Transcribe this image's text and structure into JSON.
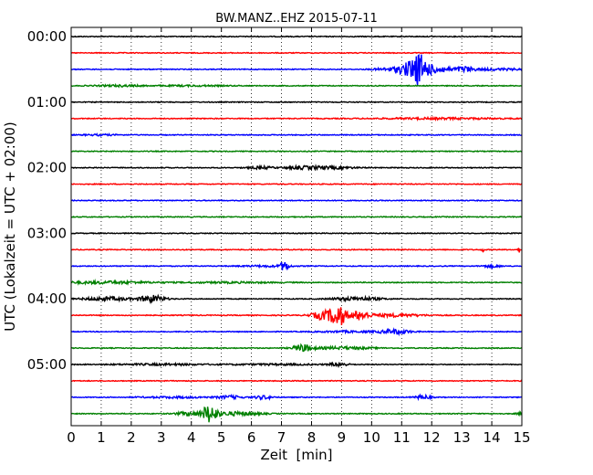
{
  "chart_data": {
    "type": "line",
    "title": "BW.MANZ..EHZ 2015-07-11",
    "xlabel": "Zeit  [min]",
    "ylabel": "UTC (Lokalzeit = UTC + 02:00)",
    "xlim": [
      0,
      15
    ],
    "x_ticks": [
      "0",
      "1",
      "2",
      "3",
      "4",
      "5",
      "6",
      "7",
      "8",
      "9",
      "10",
      "11",
      "12",
      "13",
      "14",
      "15"
    ],
    "hour_labels": [
      "00:00",
      "01:00",
      "02:00",
      "03:00",
      "04:00",
      "05:00"
    ],
    "grid": "vertical-dotted",
    "series_colors": [
      "#000000",
      "#ff0000",
      "#0000ff",
      "#008000"
    ],
    "traces": [
      {
        "start": "00:00",
        "color": "#000000",
        "events": []
      },
      {
        "start": "00:15",
        "color": "#ff0000",
        "events": []
      },
      {
        "start": "00:30",
        "color": "#0000ff",
        "events": [
          {
            "t": 10.6,
            "amp": 0.12,
            "width": 0.5
          },
          {
            "t": 11.3,
            "amp": 0.55,
            "width": 0.4
          },
          {
            "t": 11.6,
            "amp": 0.9,
            "width": 0.25
          },
          {
            "t": 12.1,
            "amp": 0.3,
            "width": 0.5
          },
          {
            "t": 13.1,
            "amp": 0.22,
            "width": 0.3
          },
          {
            "t": 14.2,
            "amp": 0.07,
            "width": 1.0
          }
        ]
      },
      {
        "start": "00:45",
        "color": "#008000",
        "events": [
          {
            "t": 1.6,
            "amp": 0.06,
            "width": 0.8
          },
          {
            "t": 4.0,
            "amp": 0.04,
            "width": 1.2
          }
        ]
      },
      {
        "start": "01:00",
        "color": "#000000",
        "events": []
      },
      {
        "start": "01:15",
        "color": "#ff0000",
        "events": [
          {
            "t": 12.3,
            "amp": 0.06,
            "width": 2.0
          }
        ]
      },
      {
        "start": "01:30",
        "color": "#0000ff",
        "events": [
          {
            "t": 1.0,
            "amp": 0.05,
            "width": 0.6
          }
        ]
      },
      {
        "start": "01:45",
        "color": "#008000",
        "events": []
      },
      {
        "start": "02:00",
        "color": "#000000",
        "events": [
          {
            "t": 6.3,
            "amp": 0.1,
            "width": 0.4
          },
          {
            "t": 7.9,
            "amp": 0.13,
            "width": 0.8
          },
          {
            "t": 9.0,
            "amp": 0.06,
            "width": 0.6
          }
        ]
      },
      {
        "start": "02:15",
        "color": "#ff0000",
        "events": []
      },
      {
        "start": "02:30",
        "color": "#0000ff",
        "events": []
      },
      {
        "start": "02:45",
        "color": "#008000",
        "events": []
      },
      {
        "start": "03:00",
        "color": "#000000",
        "events": []
      },
      {
        "start": "03:15",
        "color": "#ff0000",
        "events": [
          {
            "t": 13.7,
            "amp": 0.25,
            "width": 0.03
          },
          {
            "t": 14.9,
            "amp": 0.25,
            "width": 0.03
          }
        ]
      },
      {
        "start": "03:30",
        "color": "#0000ff",
        "events": [
          {
            "t": 6.5,
            "amp": 0.06,
            "width": 0.8
          },
          {
            "t": 7.1,
            "amp": 0.35,
            "width": 0.15
          },
          {
            "t": 14.0,
            "amp": 0.1,
            "width": 0.3
          }
        ]
      },
      {
        "start": "03:45",
        "color": "#008000",
        "events": [
          {
            "t": 1.2,
            "amp": 0.1,
            "width": 1.5
          },
          {
            "t": 5.3,
            "amp": 0.05,
            "width": 1.5
          }
        ]
      },
      {
        "start": "04:00",
        "color": "#000000",
        "events": [
          {
            "t": 1.2,
            "amp": 0.15,
            "width": 0.8
          },
          {
            "t": 2.7,
            "amp": 0.3,
            "width": 0.4
          },
          {
            "t": 9.5,
            "amp": 0.15,
            "width": 0.8
          }
        ]
      },
      {
        "start": "04:15",
        "color": "#ff0000",
        "events": [
          {
            "t": 8.4,
            "amp": 0.35,
            "width": 0.4
          },
          {
            "t": 8.9,
            "amp": 0.85,
            "width": 0.25
          },
          {
            "t": 9.6,
            "amp": 0.35,
            "width": 0.3
          },
          {
            "t": 10.7,
            "amp": 0.12,
            "width": 1.0
          }
        ]
      },
      {
        "start": "04:30",
        "color": "#0000ff",
        "events": [
          {
            "t": 9.2,
            "amp": 0.06,
            "width": 1.0
          },
          {
            "t": 10.8,
            "amp": 0.18,
            "width": 0.5
          }
        ]
      },
      {
        "start": "04:45",
        "color": "#008000",
        "events": [
          {
            "t": 7.7,
            "amp": 0.28,
            "width": 0.3
          },
          {
            "t": 9.0,
            "amp": 0.1,
            "width": 1.0
          }
        ]
      },
      {
        "start": "05:00",
        "color": "#000000",
        "events": [
          {
            "t": 3.0,
            "amp": 0.06,
            "width": 1.5
          },
          {
            "t": 6.8,
            "amp": 0.05,
            "width": 1.5
          },
          {
            "t": 8.9,
            "amp": 0.14,
            "width": 0.3
          }
        ]
      },
      {
        "start": "05:15",
        "color": "#ff0000",
        "events": []
      },
      {
        "start": "05:30",
        "color": "#0000ff",
        "events": [
          {
            "t": 3.5,
            "amp": 0.06,
            "width": 1.2
          },
          {
            "t": 5.3,
            "amp": 0.12,
            "width": 0.4
          },
          {
            "t": 6.4,
            "amp": 0.14,
            "width": 0.3
          },
          {
            "t": 11.7,
            "amp": 0.18,
            "width": 0.25
          }
        ]
      },
      {
        "start": "05:45",
        "color": "#008000",
        "events": [
          {
            "t": 3.9,
            "amp": 0.15,
            "width": 0.4
          },
          {
            "t": 4.6,
            "amp": 0.7,
            "width": 0.25
          },
          {
            "t": 5.5,
            "amp": 0.15,
            "width": 0.8
          },
          {
            "t": 14.9,
            "amp": 0.08,
            "width": 0.1
          }
        ]
      }
    ]
  }
}
